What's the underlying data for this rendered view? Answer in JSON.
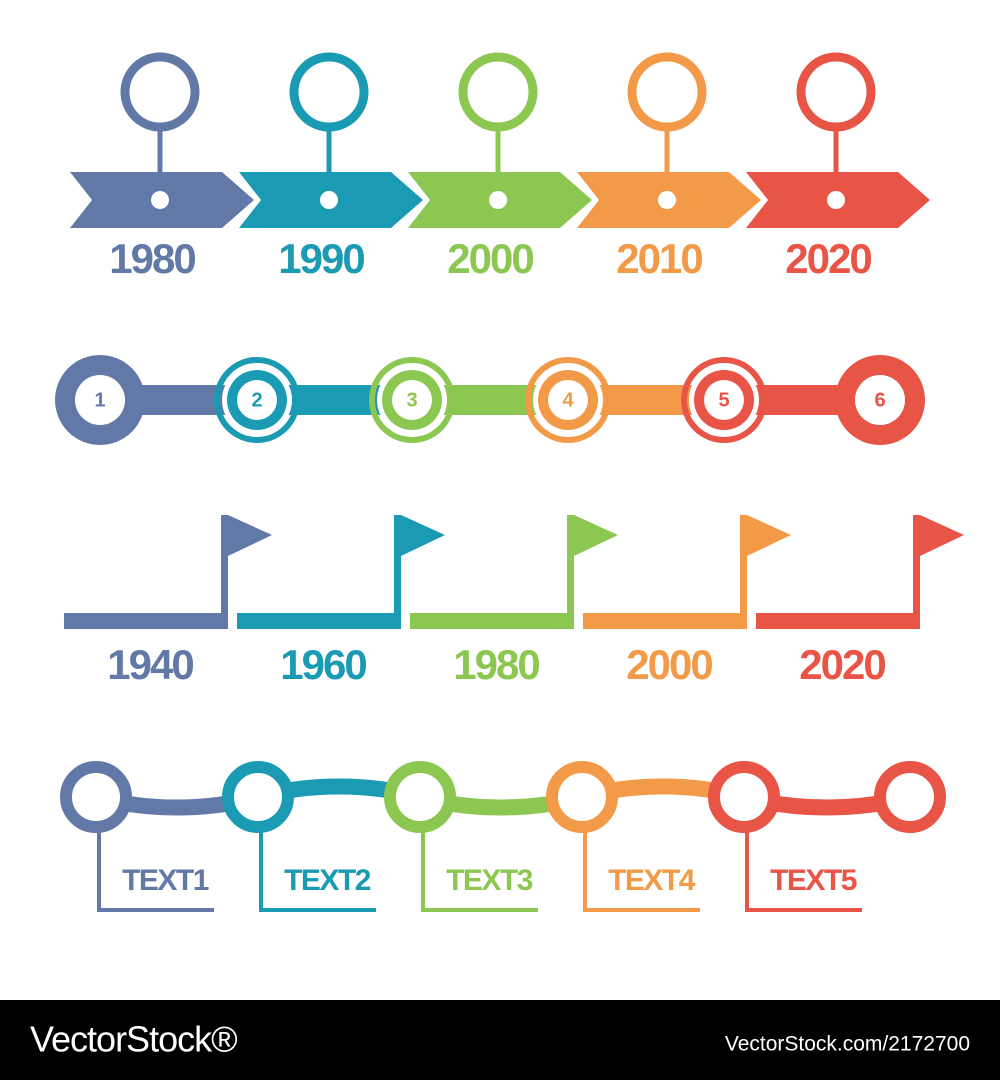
{
  "timeline_years": {
    "labels": [
      "1980",
      "1990",
      "2000",
      "2010",
      "2020"
    ]
  },
  "timeline_steps": {
    "labels": [
      "1",
      "2",
      "3",
      "4",
      "5",
      "6"
    ]
  },
  "timeline_flags": {
    "labels": [
      "1940",
      "1960",
      "1980",
      "2000",
      "2020"
    ]
  },
  "timeline_text": {
    "labels": [
      "TEXT1",
      "TEXT2",
      "TEXT3",
      "TEXT4",
      "TEXT5"
    ]
  },
  "footer": {
    "brand": "VectorStock®",
    "id": "VectorStock.com/2172700"
  },
  "colors": [
    "#6279a8",
    "#1a9bb3",
    "#8cc751",
    "#f29a48",
    "#e85445"
  ]
}
